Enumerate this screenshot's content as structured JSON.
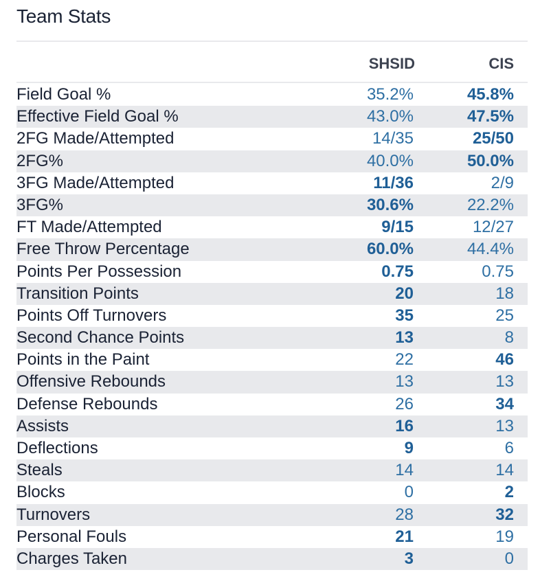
{
  "title": "Team Stats",
  "teams": [
    "SHSID",
    "CIS"
  ],
  "colors": {
    "value": "#2e6fa3",
    "label": "#1a2234",
    "stripe": "#e8e9ec"
  },
  "rows": [
    {
      "label": "Field Goal %",
      "a": "35.2%",
      "b": "45.8%",
      "bold": "b"
    },
    {
      "label": "Effective Field Goal %",
      "a": "43.0%",
      "b": "47.5%",
      "bold": "b"
    },
    {
      "label": "2FG Made/Attempted",
      "a": "14/35",
      "b": "25/50",
      "bold": "b"
    },
    {
      "label": "2FG%",
      "a": "40.0%",
      "b": "50.0%",
      "bold": "b"
    },
    {
      "label": "3FG Made/Attempted",
      "a": "11/36",
      "b": "2/9",
      "bold": "a"
    },
    {
      "label": "3FG%",
      "a": "30.6%",
      "b": "22.2%",
      "bold": "a"
    },
    {
      "label": "FT Made/Attempted",
      "a": "9/15",
      "b": "12/27",
      "bold": "a"
    },
    {
      "label": "Free Throw Percentage",
      "a": "60.0%",
      "b": "44.4%",
      "bold": "a"
    },
    {
      "label": "Points Per Possession",
      "a": "0.75",
      "b": "0.75",
      "bold": "a"
    },
    {
      "label": "Transition Points",
      "a": "20",
      "b": "18",
      "bold": "a"
    },
    {
      "label": "Points Off Turnovers",
      "a": "35",
      "b": "25",
      "bold": "a"
    },
    {
      "label": "Second Chance Points",
      "a": "13",
      "b": "8",
      "bold": "a"
    },
    {
      "label": "Points in the Paint",
      "a": "22",
      "b": "46",
      "bold": "b"
    },
    {
      "label": "Offensive Rebounds",
      "a": "13",
      "b": "13",
      "bold": ""
    },
    {
      "label": "Defense Rebounds",
      "a": "26",
      "b": "34",
      "bold": "b"
    },
    {
      "label": "Assists",
      "a": "16",
      "b": "13",
      "bold": "a"
    },
    {
      "label": "Deflections",
      "a": "9",
      "b": "6",
      "bold": "a"
    },
    {
      "label": "Steals",
      "a": "14",
      "b": "14",
      "bold": ""
    },
    {
      "label": "Blocks",
      "a": "0",
      "b": "2",
      "bold": "b"
    },
    {
      "label": "Turnovers",
      "a": "28",
      "b": "32",
      "bold": "b"
    },
    {
      "label": "Personal Fouls",
      "a": "21",
      "b": "19",
      "bold": "a"
    },
    {
      "label": "Charges Taken",
      "a": "3",
      "b": "0",
      "bold": "a"
    }
  ]
}
